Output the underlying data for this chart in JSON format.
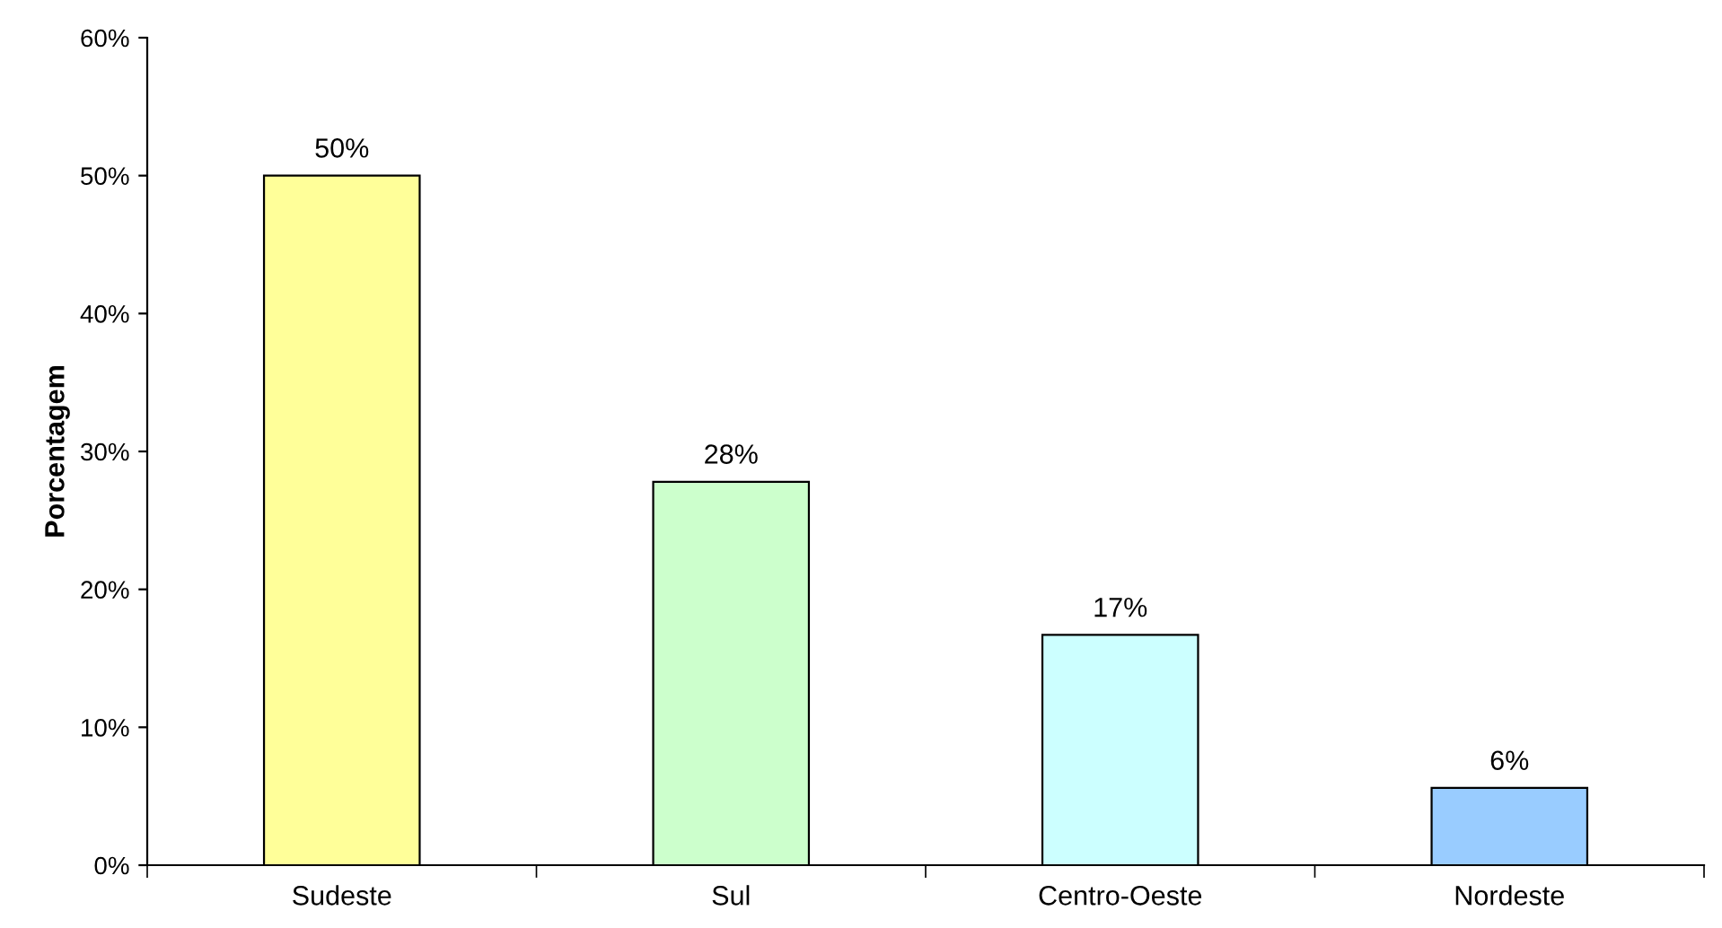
{
  "chart_data": {
    "type": "bar",
    "ylabel": "Porcentagem",
    "categories": [
      "Sudeste",
      "Sul",
      "Centro-Oeste",
      "Nordeste"
    ],
    "values": [
      50,
      27.8,
      16.7,
      5.6
    ],
    "colors": [
      "#ffff99",
      "#ccffcc",
      "#ccffff",
      "#99ccff"
    ],
    "value_labels": [
      "50%",
      "28%",
      "17%",
      "6%"
    ],
    "ylim": [
      0,
      60
    ],
    "yticks": [
      {
        "value": 0,
        "label": "0%"
      },
      {
        "value": 10,
        "label": "10%"
      },
      {
        "value": 20,
        "label": "20%"
      },
      {
        "value": 30,
        "label": "30%"
      },
      {
        "value": 40,
        "label": "40%"
      },
      {
        "value": 50,
        "label": "50%"
      },
      {
        "value": 60,
        "label": "60%"
      }
    ],
    "grid": false
  }
}
